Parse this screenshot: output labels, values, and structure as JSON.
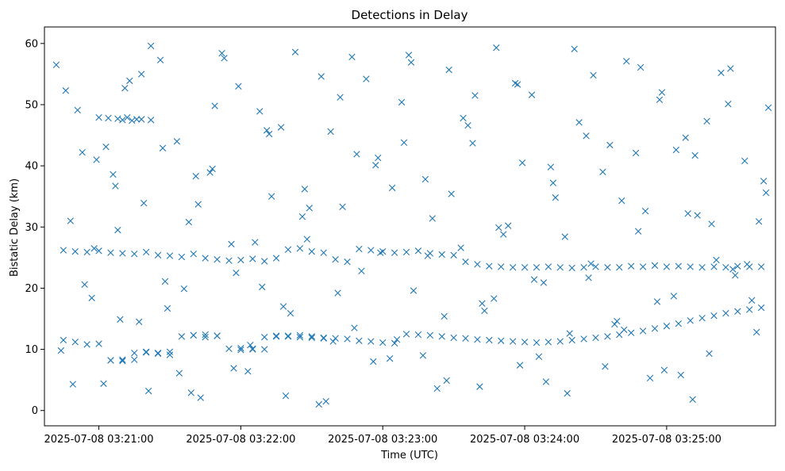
{
  "chart_data": {
    "type": "scatter",
    "title": "Detections in Delay",
    "xlabel": "Time (UTC)",
    "ylabel": "Bistatic Delay (km)",
    "marker": "x",
    "color": "#1f77b4",
    "grid": false,
    "xlim": [
      "2025-07-08 03:20:37",
      "2025-07-08 03:25:46"
    ],
    "ylim": [
      -2.5,
      62.7
    ],
    "xticks": [
      "2025-07-08 03:21:00",
      "2025-07-08 03:22:00",
      "2025-07-08 03:23:00",
      "2025-07-08 03:24:00",
      "2025-07-08 03:25:00"
    ],
    "yticks": [
      0,
      10,
      20,
      30,
      40,
      50,
      60
    ],
    "series": [
      {
        "x": [
          "2025-07-08 03:20:45",
          "2025-07-08 03:20:50",
          "2025-07-08 03:20:55",
          "2025-07-08 03:21:00",
          "2025-07-08 03:21:05",
          "2025-07-08 03:21:10",
          "2025-07-08 03:21:15",
          "2025-07-08 03:21:20",
          "2025-07-08 03:21:25",
          "2025-07-08 03:21:30",
          "2025-07-08 03:21:35",
          "2025-07-08 03:21:40",
          "2025-07-08 03:21:45",
          "2025-07-08 03:21:50",
          "2025-07-08 03:21:55",
          "2025-07-08 03:22:00",
          "2025-07-08 03:22:05",
          "2025-07-08 03:22:10",
          "2025-07-08 03:22:15",
          "2025-07-08 03:22:20",
          "2025-07-08 03:22:25",
          "2025-07-08 03:22:30",
          "2025-07-08 03:22:35",
          "2025-07-08 03:22:40",
          "2025-07-08 03:22:45",
          "2025-07-08 03:22:50",
          "2025-07-08 03:22:55",
          "2025-07-08 03:23:00",
          "2025-07-08 03:23:05",
          "2025-07-08 03:23:10",
          "2025-07-08 03:23:15",
          "2025-07-08 03:23:20",
          "2025-07-08 03:23:25",
          "2025-07-08 03:23:30",
          "2025-07-08 03:23:35",
          "2025-07-08 03:23:40",
          "2025-07-08 03:23:45",
          "2025-07-08 03:23:50",
          "2025-07-08 03:23:55",
          "2025-07-08 03:24:00",
          "2025-07-08 03:24:05",
          "2025-07-08 03:24:10",
          "2025-07-08 03:24:15",
          "2025-07-08 03:24:20",
          "2025-07-08 03:24:25",
          "2025-07-08 03:24:30",
          "2025-07-08 03:24:35",
          "2025-07-08 03:24:40",
          "2025-07-08 03:24:45",
          "2025-07-08 03:24:50",
          "2025-07-08 03:24:55",
          "2025-07-08 03:25:00",
          "2025-07-08 03:25:05",
          "2025-07-08 03:25:10",
          "2025-07-08 03:25:15",
          "2025-07-08 03:25:20",
          "2025-07-08 03:25:25",
          "2025-07-08 03:25:30",
          "2025-07-08 03:25:35",
          "2025-07-08 03:25:40",
          "2025-07-08 03:20:45",
          "2025-07-08 03:20:50",
          "2025-07-08 03:20:55",
          "2025-07-08 03:21:00",
          "2025-07-08 03:21:05",
          "2025-07-08 03:21:10",
          "2025-07-08 03:21:15",
          "2025-07-08 03:21:20",
          "2025-07-08 03:21:25",
          "2025-07-08 03:21:30",
          "2025-07-08 03:21:35",
          "2025-07-08 03:21:40",
          "2025-07-08 03:21:45",
          "2025-07-08 03:21:50",
          "2025-07-08 03:21:55",
          "2025-07-08 03:22:00",
          "2025-07-08 03:22:05",
          "2025-07-08 03:22:10",
          "2025-07-08 03:22:15",
          "2025-07-08 03:22:20",
          "2025-07-08 03:22:25",
          "2025-07-08 03:22:30",
          "2025-07-08 03:22:35",
          "2025-07-08 03:22:40",
          "2025-07-08 03:22:45",
          "2025-07-08 03:22:50",
          "2025-07-08 03:22:55",
          "2025-07-08 03:23:00",
          "2025-07-08 03:23:05",
          "2025-07-08 03:23:10",
          "2025-07-08 03:23:15",
          "2025-07-08 03:23:20",
          "2025-07-08 03:23:25",
          "2025-07-08 03:23:30",
          "2025-07-08 03:23:35",
          "2025-07-08 03:23:40",
          "2025-07-08 03:23:45",
          "2025-07-08 03:23:50",
          "2025-07-08 03:23:55",
          "2025-07-08 03:24:00",
          "2025-07-08 03:24:05",
          "2025-07-08 03:24:10",
          "2025-07-08 03:24:15",
          "2025-07-08 03:24:20",
          "2025-07-08 03:24:25",
          "2025-07-08 03:24:30",
          "2025-07-08 03:24:35",
          "2025-07-08 03:24:40",
          "2025-07-08 03:24:45",
          "2025-07-08 03:24:50",
          "2025-07-08 03:24:55",
          "2025-07-08 03:25:00",
          "2025-07-08 03:25:05",
          "2025-07-08 03:25:10",
          "2025-07-08 03:25:15",
          "2025-07-08 03:25:20",
          "2025-07-08 03:25:25",
          "2025-07-08 03:25:30",
          "2025-07-08 03:25:35",
          "2025-07-08 03:25:40",
          "2025-07-08 03:21:00",
          "2025-07-08 03:21:04",
          "2025-07-08 03:21:08",
          "2025-07-08 03:21:12",
          "2025-07-08 03:21:16",
          "2025-07-08 03:21:10",
          "2025-07-08 03:21:14",
          "2025-07-08 03:21:18",
          "2025-07-08 03:21:22",
          "2025-07-08 03:21:05",
          "2025-07-08 03:21:10",
          "2025-07-08 03:21:15",
          "2025-07-08 03:21:20",
          "2025-07-08 03:21:25",
          "2025-07-08 03:21:30",
          "2025-07-08 03:21:40",
          "2025-07-08 03:21:45",
          "2025-07-08 03:21:50",
          "2025-07-08 03:22:00",
          "2025-07-08 03:22:05",
          "2025-07-08 03:22:10",
          "2025-07-08 03:22:15",
          "2025-07-08 03:22:20",
          "2025-07-08 03:22:25",
          "2025-07-08 03:22:30",
          "2025-07-08 03:22:35",
          "2025-07-08 03:20:42",
          "2025-07-08 03:20:48",
          "2025-07-08 03:20:53",
          "2025-07-08 03:20:57",
          "2025-07-08 03:21:02",
          "2025-07-08 03:21:07",
          "2025-07-08 03:21:11",
          "2025-07-08 03:21:17",
          "2025-07-08 03:21:22",
          "2025-07-08 03:21:28",
          "2025-07-08 03:21:33",
          "2025-07-08 03:21:38",
          "2025-07-08 03:21:43",
          "2025-07-08 03:21:48",
          "2025-07-08 03:21:53",
          "2025-07-08 03:21:58",
          "2025-07-08 03:22:03",
          "2025-07-08 03:22:08",
          "2025-07-08 03:22:13",
          "2025-07-08 03:22:18",
          "2025-07-08 03:22:23",
          "2025-07-08 03:22:28",
          "2025-07-08 03:22:33",
          "2025-07-08 03:22:38",
          "2025-07-08 03:22:43",
          "2025-07-08 03:22:48",
          "2025-07-08 03:22:53",
          "2025-07-08 03:22:58",
          "2025-07-08 03:23:03",
          "2025-07-08 03:23:08",
          "2025-07-08 03:23:13",
          "2025-07-08 03:23:18",
          "2025-07-08 03:23:23",
          "2025-07-08 03:23:28",
          "2025-07-08 03:23:33",
          "2025-07-08 03:23:38",
          "2025-07-08 03:23:43",
          "2025-07-08 03:23:48",
          "2025-07-08 03:23:53",
          "2025-07-08 03:23:58",
          "2025-07-08 03:24:03",
          "2025-07-08 03:24:08",
          "2025-07-08 03:24:13",
          "2025-07-08 03:24:18",
          "2025-07-08 03:24:23",
          "2025-07-08 03:24:28",
          "2025-07-08 03:24:33",
          "2025-07-08 03:24:38",
          "2025-07-08 03:24:43",
          "2025-07-08 03:24:48",
          "2025-07-08 03:24:53",
          "2025-07-08 03:24:58",
          "2025-07-08 03:25:03",
          "2025-07-08 03:25:08",
          "2025-07-08 03:25:13",
          "2025-07-08 03:25:18",
          "2025-07-08 03:25:23",
          "2025-07-08 03:25:28",
          "2025-07-08 03:25:33",
          "2025-07-08 03:25:38",
          "2025-07-08 03:25:43",
          "2025-07-08 03:20:44",
          "2025-07-08 03:20:51",
          "2025-07-08 03:20:58",
          "2025-07-08 03:21:06",
          "2025-07-08 03:21:13",
          "2025-07-08 03:21:21",
          "2025-07-08 03:21:27",
          "2025-07-08 03:21:36",
          "2025-07-08 03:21:42",
          "2025-07-08 03:21:52",
          "2025-07-08 03:21:57",
          "2025-07-08 03:22:06",
          "2025-07-08 03:22:12",
          "2025-07-08 03:22:21",
          "2025-07-08 03:22:27",
          "2025-07-08 03:22:36",
          "2025-07-08 03:22:42",
          "2025-07-08 03:22:51",
          "2025-07-08 03:22:57",
          "2025-07-08 03:23:06",
          "2025-07-08 03:23:12",
          "2025-07-08 03:23:21",
          "2025-07-08 03:23:27",
          "2025-07-08 03:23:36",
          "2025-07-08 03:23:42",
          "2025-07-08 03:23:51",
          "2025-07-08 03:23:57",
          "2025-07-08 03:24:06",
          "2025-07-08 03:24:12",
          "2025-07-08 03:24:21",
          "2025-07-08 03:24:27",
          "2025-07-08 03:24:36",
          "2025-07-08 03:24:42",
          "2025-07-08 03:24:51",
          "2025-07-08 03:24:57",
          "2025-07-08 03:25:06",
          "2025-07-08 03:25:12",
          "2025-07-08 03:25:21",
          "2025-07-08 03:25:27",
          "2025-07-08 03:25:36",
          "2025-07-08 03:25:42",
          "2025-07-08 03:20:46",
          "2025-07-08 03:20:54",
          "2025-07-08 03:21:03",
          "2025-07-08 03:21:09",
          "2025-07-08 03:21:19",
          "2025-07-08 03:21:26",
          "2025-07-08 03:21:34",
          "2025-07-08 03:21:41",
          "2025-07-08 03:21:49",
          "2025-07-08 03:21:56",
          "2025-07-08 03:22:04",
          "2025-07-08 03:22:11",
          "2025-07-08 03:22:19",
          "2025-07-08 03:22:26",
          "2025-07-08 03:22:34",
          "2025-07-08 03:22:41",
          "2025-07-08 03:22:49",
          "2025-07-08 03:22:56",
          "2025-07-08 03:23:04",
          "2025-07-08 03:23:11",
          "2025-07-08 03:23:19",
          "2025-07-08 03:23:26",
          "2025-07-08 03:23:34",
          "2025-07-08 03:23:41",
          "2025-07-08 03:23:49",
          "2025-07-08 03:23:56",
          "2025-07-08 03:24:04",
          "2025-07-08 03:24:11",
          "2025-07-08 03:24:19",
          "2025-07-08 03:24:26",
          "2025-07-08 03:24:34",
          "2025-07-08 03:24:41",
          "2025-07-08 03:24:49",
          "2025-07-08 03:24:56",
          "2025-07-08 03:25:04",
          "2025-07-08 03:25:11",
          "2025-07-08 03:25:19",
          "2025-07-08 03:25:26",
          "2025-07-08 03:25:34",
          "2025-07-08 03:25:41",
          "2025-07-08 03:20:49",
          "2025-07-08 03:20:59",
          "2025-07-08 03:21:08",
          "2025-07-08 03:21:18",
          "2025-07-08 03:21:29",
          "2025-07-08 03:21:39",
          "2025-07-08 03:21:47",
          "2025-07-08 03:21:59",
          "2025-07-08 03:22:09",
          "2025-07-08 03:22:17",
          "2025-07-08 03:22:29",
          "2025-07-08 03:22:39",
          "2025-07-08 03:22:47",
          "2025-07-08 03:22:59",
          "2025-07-08 03:23:09",
          "2025-07-08 03:23:17",
          "2025-07-08 03:23:29",
          "2025-07-08 03:23:39",
          "2025-07-08 03:23:47",
          "2025-07-08 03:23:59",
          "2025-07-08 03:24:09",
          "2025-07-08 03:24:17",
          "2025-07-08 03:24:29",
          "2025-07-08 03:24:39",
          "2025-07-08 03:24:47",
          "2025-07-08 03:24:59",
          "2025-07-08 03:25:09",
          "2025-07-08 03:25:17",
          "2025-07-08 03:25:29",
          "2025-07-08 03:25:39"
        ],
        "y": [
          26.2,
          26.0,
          25.9,
          26.1,
          25.8,
          25.7,
          25.6,
          25.9,
          25.4,
          25.3,
          25.1,
          25.6,
          24.9,
          24.7,
          24.5,
          24.6,
          24.8,
          24.4,
          24.9,
          26.3,
          26.5,
          26.0,
          25.8,
          24.7,
          24.3,
          26.4,
          26.2,
          26.0,
          25.8,
          25.9,
          26.1,
          25.7,
          25.5,
          25.4,
          24.3,
          23.9,
          23.6,
          23.5,
          23.4,
          23.4,
          23.4,
          23.5,
          23.4,
          23.3,
          23.4,
          23.5,
          23.4,
          23.4,
          23.6,
          23.5,
          23.7,
          23.5,
          23.6,
          23.5,
          23.4,
          23.5,
          23.4,
          23.6,
          23.5,
          23.5,
          11.5,
          11.2,
          10.8,
          10.9,
          8.2,
          8.3,
          9.4,
          9.6,
          9.3,
          9.1,
          12.1,
          12.3,
          12.0,
          12.2,
          10.1,
          10.2,
          10.0,
          12.0,
          12.1,
          12.2,
          12.3,
          12.1,
          11.9,
          11.8,
          11.7,
          11.4,
          11.3,
          11.1,
          11.0,
          12.5,
          12.4,
          12.3,
          12.1,
          11.9,
          11.8,
          11.6,
          11.5,
          11.4,
          11.3,
          11.2,
          11.1,
          11.2,
          11.3,
          11.5,
          11.7,
          11.9,
          12.1,
          12.4,
          12.7,
          13.0,
          13.4,
          13.8,
          14.2,
          14.7,
          15.1,
          15.5,
          15.9,
          16.2,
          16.5,
          16.8,
          47.9,
          47.8,
          47.7,
          47.9,
          47.6,
          47.5,
          47.4,
          47.6,
          47.5,
          8.2,
          8.1,
          8.3,
          9.5,
          9.4,
          9.6,
          12.3,
          12.4,
          12.2,
          9.9,
          10.1,
          10.0,
          12.2,
          12.1,
          12.0,
          11.9,
          11.8,
          56.5,
          31.0,
          42.2,
          18.4,
          4.4,
          36.7,
          52.7,
          14.5,
          59.6,
          21.1,
          44.0,
          30.8,
          2.1,
          39.5,
          57.6,
          22.5,
          6.4,
          48.9,
          35.0,
          17.0,
          58.6,
          28.0,
          1.0,
          45.6,
          33.3,
          13.5,
          54.2,
          41.3,
          8.5,
          50.4,
          19.6,
          37.8,
          3.6,
          55.7,
          26.6,
          43.7,
          16.3,
          59.3,
          30.2,
          7.4,
          51.6,
          20.9,
          34.8,
          2.8,
          47.1,
          24.0,
          39.0,
          14.1,
          57.1,
          29.3,
          5.3,
          52.0,
          18.7,
          44.6,
          31.9,
          9.3,
          55.2,
          23.1,
          40.8,
          12.8,
          49.5,
          9.8,
          49.1,
          26.5,
          38.6,
          53.9,
          3.2,
          42.9,
          19.9,
          33.7,
          58.4,
          6.9,
          27.5,
          45.2,
          15.9,
          36.2,
          1.5,
          51.2,
          22.8,
          40.1,
          11.6,
          56.9,
          31.4,
          4.9,
          46.6,
          17.5,
          28.8,
          53.3,
          8.8,
          37.2,
          59.1,
          21.7,
          43.4,
          13.2,
          32.6,
          50.8,
          5.8,
          41.7,
          24.6,
          55.9,
          18.0,
          35.6,
          52.3,
          20.6,
          43.1,
          14.9,
          33.9,
          57.3,
          6.1,
          38.3,
          49.8,
          27.2,
          10.7,
          45.8,
          2.4,
          31.7,
          54.6,
          19.2,
          41.9,
          8.0,
          36.4,
          58.1,
          25.3,
          15.4,
          47.8,
          3.9,
          29.9,
          53.5,
          21.4,
          39.8,
          12.6,
          44.9,
          7.2,
          34.3,
          56.1,
          17.8,
          42.6,
          1.8,
          30.5,
          50.1,
          23.9,
          37.5,
          4.3,
          41.0,
          29.5,
          55.0,
          16.7,
          2.9,
          38.9,
          53.0,
          20.2,
          46.3,
          33.1,
          11.3,
          57.8,
          25.8,
          43.8,
          9.0,
          35.4,
          51.5,
          18.3,
          40.5,
          4.7,
          28.4,
          54.8,
          14.6,
          42.1,
          6.6,
          32.2,
          47.3,
          22.1,
          30.9
        ]
      }
    ]
  }
}
